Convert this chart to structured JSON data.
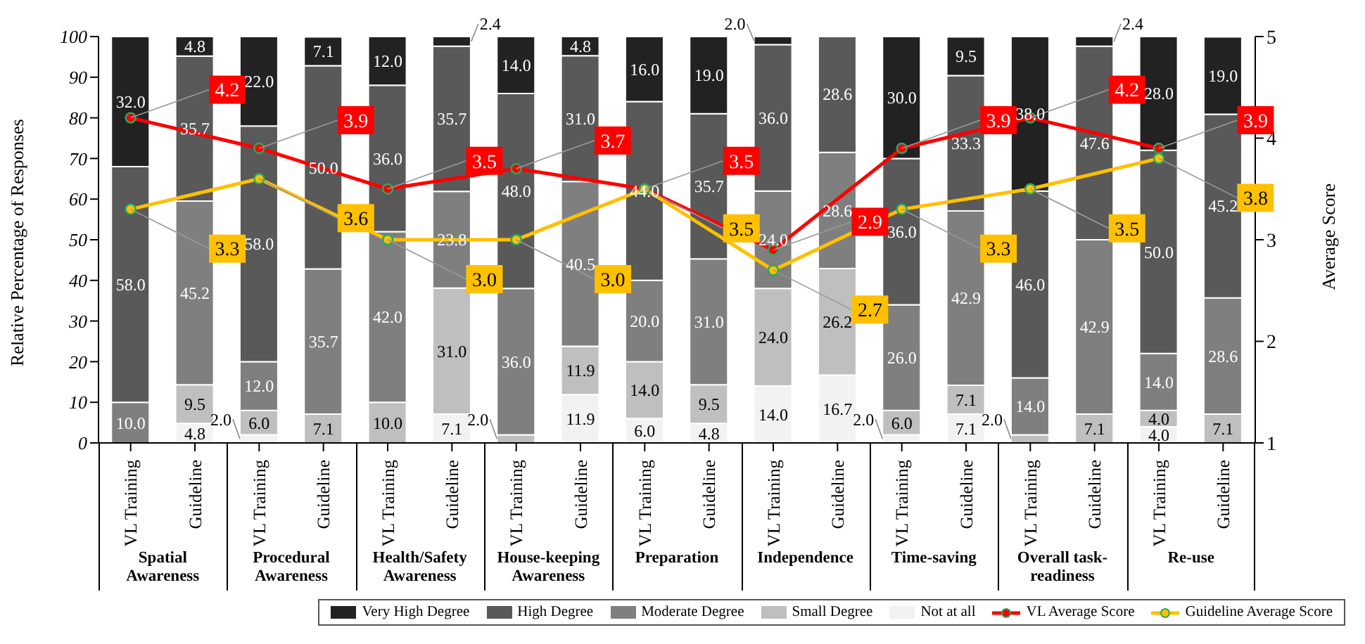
{
  "chart_data": {
    "type": "bar",
    "stacked": true,
    "ylabel": "Relative Percentage of Responses",
    "y2label": "Average Score",
    "categories": [
      "VL Training",
      "Guideline",
      "VL Training",
      "Guideline",
      "VL Training",
      "Guideline",
      "VL Training",
      "Guideline",
      "VL Training",
      "Guideline",
      "VL Training",
      "Guideline",
      "VL Training",
      "Guideline",
      "VL Training",
      "Guideline",
      "VL Training",
      "Guideline"
    ],
    "annotations": [
      "Spatial Awareness",
      "Procedural Awareness",
      "Health/Safety Awareness",
      "House-keeping Awareness",
      "Preparation",
      "Independence",
      "Time-saving",
      "Overall task-readiness",
      "Re-use"
    ],
    "ylim": [
      0,
      100
    ],
    "yticks": [
      0,
      10,
      20,
      30,
      40,
      50,
      60,
      70,
      80,
      90,
      100
    ],
    "y2lim": [
      1,
      5
    ],
    "y2ticks": [
      1,
      2,
      3,
      4,
      5
    ],
    "legend": "bottom",
    "marker": "circle",
    "series": [
      {
        "name": "Not at all",
        "color": "#f2f2f2",
        "values": [
          null,
          4.8,
          2.0,
          null,
          null,
          7.1,
          null,
          11.9,
          6.0,
          4.8,
          14.0,
          16.7,
          2.0,
          7.1,
          null,
          null,
          4.0,
          null
        ],
        "value_labels": [
          null,
          "4.8",
          "2.0",
          null,
          null,
          "7.1",
          null,
          "11.9",
          "6.0",
          "4.8",
          "14.0",
          "16.7",
          "2.0",
          "7.1",
          null,
          null,
          "4.0",
          null
        ]
      },
      {
        "name": "Small Degree",
        "color": "#bfbfbf",
        "values": [
          null,
          9.5,
          6.0,
          7.1,
          10.0,
          31.0,
          2.0,
          11.9,
          14.0,
          9.5,
          24.0,
          26.2,
          6.0,
          7.1,
          2.0,
          7.1,
          4.0,
          7.1
        ],
        "value_labels": [
          null,
          "9.5",
          "6.0",
          "7.1",
          "10.0",
          "31.0",
          "2.0",
          "11.9",
          "14.0",
          "9.5",
          "24.0",
          "26.2",
          "6.0",
          "7.1",
          "2.0",
          "7.1",
          "4.0",
          "7.1"
        ]
      },
      {
        "name": "Moderate Degree",
        "color": "#7f7f7f",
        "values": [
          10.0,
          45.2,
          12.0,
          35.7,
          42.0,
          23.8,
          36.0,
          40.5,
          20.0,
          31.0,
          24.0,
          28.6,
          26.0,
          42.9,
          14.0,
          42.9,
          14.0,
          28.6
        ],
        "value_labels": [
          "10.0",
          "45.2",
          "12.0",
          "35.7",
          "42.0",
          "23.8",
          "36.0",
          "40.5",
          "20.0",
          "31.0",
          "24.0",
          "28.6",
          "26.0",
          "42.9",
          "14.0",
          "42.9",
          "14.0",
          "28.6"
        ]
      },
      {
        "name": "High Degree",
        "color": "#595959",
        "values": [
          58.0,
          35.7,
          58.0,
          50.0,
          36.0,
          35.7,
          48.0,
          31.0,
          44.0,
          35.7,
          36.0,
          28.6,
          36.0,
          33.3,
          46.0,
          47.6,
          50.0,
          45.2
        ],
        "value_labels": [
          "58.0",
          "35.7",
          "58.0",
          "50.0",
          "36.0",
          "35.7",
          "48.0",
          "31.0",
          "44.0",
          "35.7",
          "36.0",
          "28.6",
          "36.0",
          "33.3",
          "46.0",
          "47.6",
          "50.0",
          "45.2"
        ]
      },
      {
        "name": "Very High Degree",
        "color": "#222222",
        "values": [
          32.0,
          4.8,
          22.0,
          7.1,
          12.0,
          2.4,
          14.0,
          4.8,
          16.0,
          19.0,
          2.0,
          null,
          30.0,
          9.5,
          38.0,
          2.4,
          28.0,
          19.0
        ],
        "value_labels": [
          "32.0",
          "4.8",
          "22.0",
          "7.1",
          "12.0",
          "2.4",
          "14.0",
          "4.8",
          "16.0",
          "19.0",
          "2.0",
          null,
          "30.0",
          "9.5",
          "38.0",
          "2.4",
          "28.0",
          "19.0"
        ]
      },
      {
        "name": "VL Average Score",
        "type": "line",
        "axis": "y2",
        "color": "#ff0000",
        "values": [
          4.2,
          null,
          3.9,
          null,
          3.5,
          null,
          3.7,
          null,
          3.5,
          null,
          2.9,
          null,
          3.9,
          null,
          4.2,
          null,
          3.9,
          null
        ],
        "value_labels": [
          "4.2",
          null,
          "3.9",
          null,
          "3.5",
          null,
          "3.7",
          null,
          "3.5",
          null,
          "2.9",
          null,
          "3.9",
          null,
          "4.2",
          null,
          "3.9",
          null
        ]
      },
      {
        "name": "Guideline Average Score",
        "type": "line",
        "axis": "y2",
        "color": "#ffc000",
        "values": [
          3.3,
          null,
          3.6,
          null,
          3.0,
          null,
          3.0,
          null,
          3.5,
          null,
          2.7,
          null,
          3.3,
          null,
          3.5,
          null,
          3.8,
          null
        ],
        "value_labels": [
          "3.3",
          null,
          "3.6",
          null,
          "3.0",
          null,
          "3.0",
          null,
          "3.5",
          null,
          "2.7",
          null,
          "3.3",
          null,
          "3.5",
          null,
          "3.8",
          null
        ]
      }
    ]
  }
}
